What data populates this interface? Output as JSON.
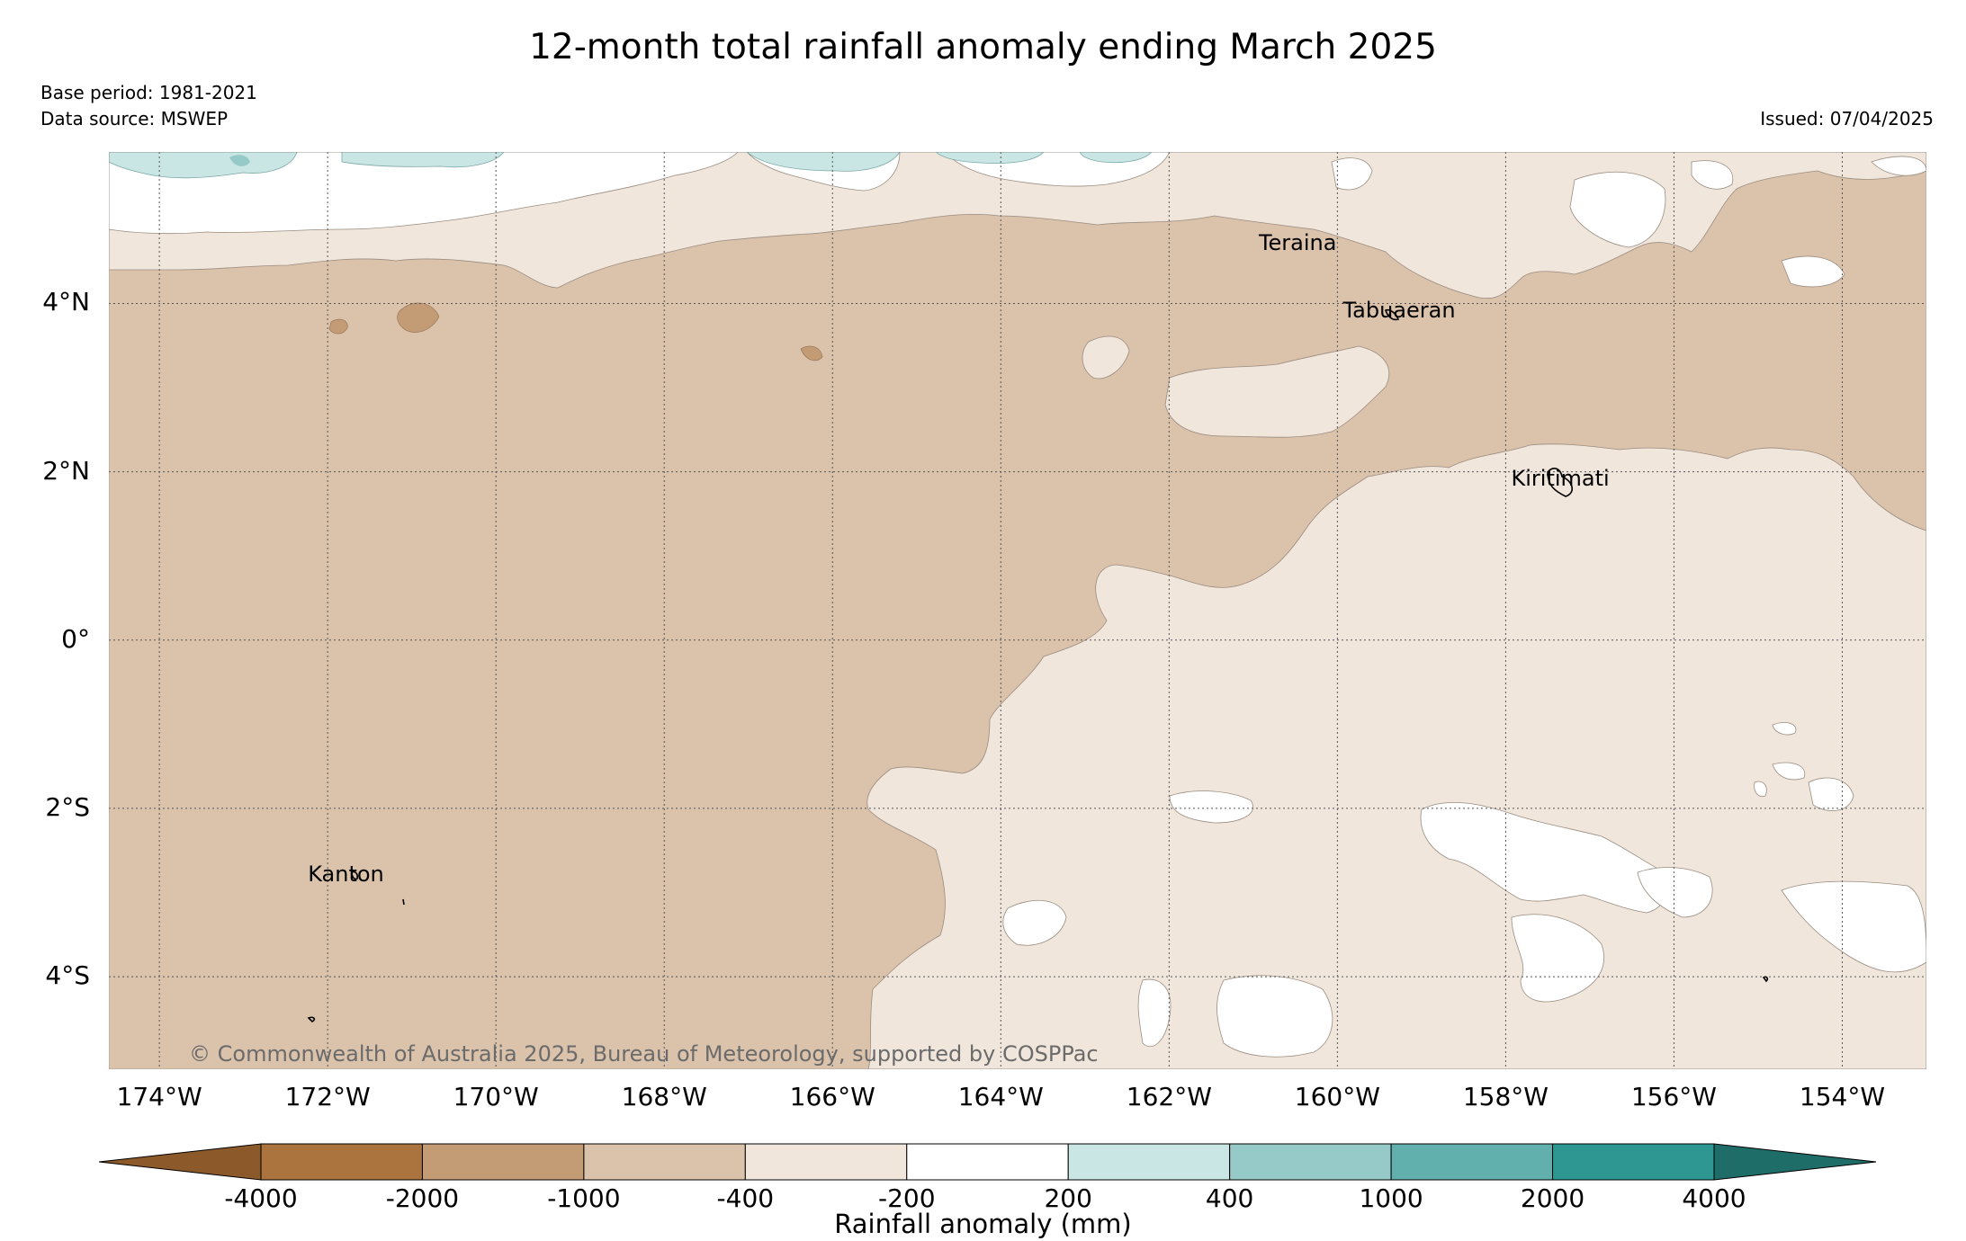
{
  "title": "12-month total rainfall anomaly ending March 2025",
  "base_period": "Base period: 1981-2021",
  "data_source": "Data source: MSWEP",
  "issued": "Issued: 07/04/2025",
  "copyright": "© Commonwealth of Australia 2025, Bureau of Meteorology, supported by COSPPac",
  "map": {
    "lon_range": [
      -174.6,
      -153.0
    ],
    "lat_range": [
      -5.1,
      5.8
    ],
    "lat_ticks": [
      {
        "value": 4,
        "label": "4°N"
      },
      {
        "value": 2,
        "label": "2°N"
      },
      {
        "value": 0,
        "label": "0°"
      },
      {
        "value": -2,
        "label": "2°S"
      },
      {
        "value": -4,
        "label": "4°S"
      }
    ],
    "lon_ticks": [
      {
        "value": -174,
        "label": "174°W"
      },
      {
        "value": -172,
        "label": "172°W"
      },
      {
        "value": -170,
        "label": "170°W"
      },
      {
        "value": -168,
        "label": "168°W"
      },
      {
        "value": -166,
        "label": "166°W"
      },
      {
        "value": -164,
        "label": "164°W"
      },
      {
        "value": -162,
        "label": "162°W"
      },
      {
        "value": -160,
        "label": "160°W"
      },
      {
        "value": -158,
        "label": "158°W"
      },
      {
        "value": -156,
        "label": "156°W"
      },
      {
        "value": -154,
        "label": "154°W"
      }
    ],
    "places": [
      {
        "name": "Teraina",
        "lon": -160.4,
        "lat": 4.7
      },
      {
        "name": "Tabuaeran",
        "lon": -159.4,
        "lat": 3.9
      },
      {
        "name": "Kiritimati",
        "lon": -157.4,
        "lat": 1.9
      },
      {
        "name": "Kanton",
        "lon": -171.7,
        "lat": -2.8
      }
    ]
  },
  "colorbar": {
    "title": "Rainfall anomaly (mm)",
    "ticks": [
      "-4000",
      "-2000",
      "-1000",
      "-400",
      "-200",
      "200",
      "400",
      "1000",
      "2000",
      "4000"
    ],
    "colors": [
      "#8c5a2a",
      "#ab733e",
      "#c39b74",
      "#dbc2ab",
      "#f0e6dc",
      "#ffffff",
      "#c9e6e4",
      "#95cac9",
      "#62b0ad",
      "#2e9791",
      "#1f6d69"
    ]
  }
}
